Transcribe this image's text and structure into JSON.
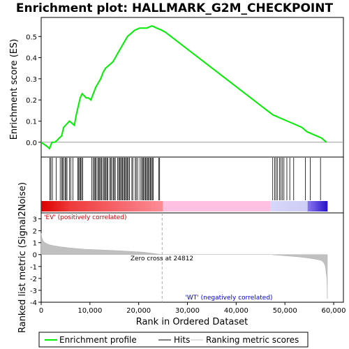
{
  "chart_data": [
    {
      "panel": "enrichment-profile",
      "type": "line",
      "title": "Enrichment plot: HALLMARK_G2M_CHECKPOINT",
      "ylabel": "Enrichment score (ES)",
      "xlim": [
        0,
        62000
      ],
      "ylim": [
        -0.07,
        0.59
      ],
      "yticks": [
        "0.0",
        "0.1",
        "0.2",
        "0.3",
        "0.4",
        "0.5"
      ],
      "ytick_values": [
        0.0,
        0.1,
        0.2,
        0.3,
        0.4,
        0.5
      ],
      "grid": false,
      "series": [
        {
          "name": "Enrichment profile",
          "color": "#00ee00",
          "x": [
            0,
            1200,
            1700,
            2200,
            2800,
            3300,
            3700,
            4200,
            4600,
            5000,
            5400,
            5800,
            6300,
            6800,
            7200,
            7600,
            8000,
            8400,
            8800,
            9200,
            9700,
            10200,
            10700,
            11200,
            11700,
            12200,
            12700,
            13200,
            13700,
            14200,
            14700,
            15200,
            15700,
            16200,
            16700,
            17200,
            17700,
            18200,
            18700,
            19200,
            19700,
            20200,
            20700,
            21200,
            21700,
            22200,
            22700,
            23200,
            23700,
            24200,
            24700,
            25500,
            47500,
            48500,
            49500,
            50500,
            51500,
            52500,
            53500,
            54500,
            55500,
            56500,
            57500,
            58500
          ],
          "y": [
            0.0,
            -0.02,
            -0.03,
            0.0,
            0.0,
            0.01,
            0.02,
            0.03,
            0.07,
            0.08,
            0.09,
            0.1,
            0.09,
            0.08,
            0.13,
            0.17,
            0.21,
            0.23,
            0.22,
            0.21,
            0.21,
            0.2,
            0.23,
            0.26,
            0.28,
            0.3,
            0.33,
            0.35,
            0.36,
            0.37,
            0.38,
            0.4,
            0.42,
            0.44,
            0.46,
            0.48,
            0.5,
            0.51,
            0.52,
            0.53,
            0.535,
            0.54,
            0.54,
            0.54,
            0.54,
            0.545,
            0.55,
            0.545,
            0.54,
            0.535,
            0.53,
            0.52,
            0.13,
            0.12,
            0.11,
            0.1,
            0.09,
            0.08,
            0.07,
            0.05,
            0.04,
            0.03,
            0.02,
            0.0
          ]
        }
      ]
    },
    {
      "panel": "hits",
      "type": "scatter",
      "series": [
        {
          "name": "Hits",
          "color": "#000000",
          "x": [
            1800,
            2000,
            2300,
            3100,
            3900,
            4200,
            4400,
            4600,
            4900,
            5100,
            5300,
            5800,
            6100,
            6500,
            7500,
            7700,
            7900,
            8100,
            8300,
            8500,
            10400,
            10700,
            10900,
            11100,
            11300,
            11600,
            11800,
            12000,
            12200,
            12400,
            12700,
            12900,
            13100,
            13300,
            13500,
            13700,
            14100,
            14300,
            14500,
            14800,
            15000,
            15200,
            15700,
            15900,
            16100,
            16300,
            16500,
            16700,
            16900,
            17100,
            17300,
            17500,
            17700,
            17900,
            18100,
            18600,
            18800,
            19300,
            19500,
            19800,
            20300,
            20600,
            20800,
            21000,
            21200,
            21400,
            21600,
            21800,
            22000,
            22200,
            22400,
            22600,
            22800,
            23000,
            24100,
            24300,
            47500,
            47900,
            48200,
            48500,
            48900,
            49200,
            49500,
            49800,
            50400,
            51000,
            51800,
            54200,
            55200,
            57300
          ]
        }
      ]
    },
    {
      "panel": "ranked-metric",
      "type": "area",
      "ylabel": "Ranked list metric (Signal2Noise)",
      "xlabel": "Rank in Ordered Dataset",
      "xlim": [
        0,
        62000
      ],
      "ylim": [
        -4,
        3.5
      ],
      "xticks": [
        "0",
        "10,000",
        "20,000",
        "30,000",
        "40,000",
        "50,000",
        "60,000"
      ],
      "xtick_values": [
        0,
        10000,
        20000,
        30000,
        40000,
        50000,
        60000
      ],
      "yticks": [
        "-4",
        "-3",
        "-2",
        "-1",
        "0",
        "1",
        "2",
        "3"
      ],
      "ytick_values": [
        -4,
        -3,
        -2,
        -1,
        0,
        1,
        2,
        3
      ],
      "zero_cross": 24812,
      "annotations": {
        "zero_cross_label": "Zero cross at 24812",
        "positive_label": "'EV' (positively correlated)",
        "negative_label": "'WT' (negatively correlated)"
      },
      "series": [
        {
          "name": "Ranking metric scores",
          "color": "#c0c0c0",
          "x": [
            0,
            150,
            400,
            800,
            1500,
            2500,
            4000,
            6000,
            9000,
            13000,
            17000,
            21000,
            24812,
            47000,
            50000,
            53000,
            55000,
            56500,
            57500,
            58000,
            58300,
            58600,
            58700
          ],
          "y": [
            1.8,
            1.4,
            1.15,
            1.0,
            0.85,
            0.75,
            0.65,
            0.55,
            0.45,
            0.38,
            0.3,
            0.2,
            0.0,
            0.0,
            -0.1,
            -0.2,
            -0.3,
            -0.4,
            -0.5,
            -0.7,
            -1.0,
            -2.0,
            -3.7
          ]
        }
      ]
    }
  ],
  "legend": {
    "enrichment": "Enrichment profile",
    "hits": "Hits",
    "ranking": "Ranking metric scores"
  }
}
